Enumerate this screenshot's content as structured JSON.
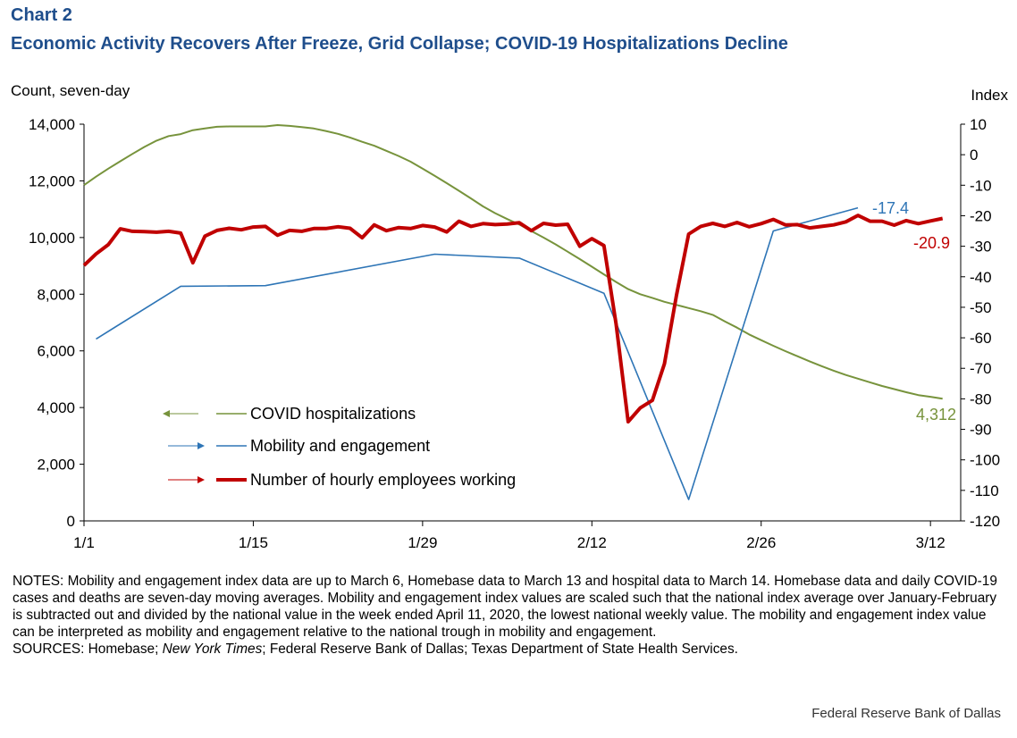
{
  "header": {
    "label": "Chart 2",
    "title": "Economic Activity Recovers After Freeze, Grid Collapse; COVID-19 Hospitalizations Decline"
  },
  "axes": {
    "left_unit": "Count, seven-day",
    "right_unit": "Index"
  },
  "notes": {
    "text": "NOTES: Mobility and engagement index data are up to March 6, Homebase data to March 13 and hospital data to March 14. Homebase data and daily COVID-19 cases and deaths are seven-day moving averages. Mobility and engagement index values are scaled such that the national index average over January-February is subtracted out and divided by the national value in the week ended April 11, 2020, the lowest national weekly value. The mobility and engagement index value can be interpreted as mobility and engagement relative to the national trough in mobility and engagement.",
    "sources_label": "SOURCES: Homebase; ",
    "sources_italic": "New York Times",
    "sources_rest": "; Federal Reserve Bank of Dallas; Texas Department of State Health Services."
  },
  "credit": "Federal Reserve Bank of Dallas",
  "colors": {
    "title": "#1f4e8c",
    "covid": "#77933c",
    "mobility": "#2e75b6",
    "employees": "#c00000",
    "axis": "#000000"
  },
  "chart_data": {
    "type": "line",
    "x_ticks": [
      {
        "day": 0,
        "label": "1/1"
      },
      {
        "day": 14,
        "label": "1/15"
      },
      {
        "day": 28,
        "label": "1/29"
      },
      {
        "day": 42,
        "label": "2/12"
      },
      {
        "day": 56,
        "label": "2/26"
      },
      {
        "day": 70,
        "label": "3/12"
      }
    ],
    "xlim": [
      0,
      72.5
    ],
    "left_axis": {
      "label": "Count, seven-day",
      "ylim": [
        0,
        14000
      ],
      "ticks": [
        "0",
        "2,000",
        "4,000",
        "6,000",
        "8,000",
        "10,000",
        "12,000",
        "14,000"
      ],
      "tick_values": [
        0,
        2000,
        4000,
        6000,
        8000,
        10000,
        12000,
        14000
      ]
    },
    "right_axis": {
      "label": "Index",
      "ylim": [
        -120,
        10
      ],
      "ticks": [
        "-120",
        "-110",
        "-100",
        "-90",
        "-80",
        "-70",
        "-60",
        "-50",
        "-40",
        "-30",
        "-20",
        "-10",
        "0",
        "10"
      ],
      "tick_values": [
        -120,
        -110,
        -100,
        -90,
        -80,
        -70,
        -60,
        -50,
        -40,
        -30,
        -20,
        -10,
        0,
        10
      ]
    },
    "legend_placement": "lower-left",
    "series": [
      {
        "name": "COVID hospitalizations",
        "axis": "left",
        "color": "#77933c",
        "end_label": "4,312",
        "points": [
          [
            0,
            11850
          ],
          [
            1,
            12150
          ],
          [
            2,
            12430
          ],
          [
            3,
            12690
          ],
          [
            4,
            12950
          ],
          [
            5,
            13200
          ],
          [
            6,
            13420
          ],
          [
            7,
            13580
          ],
          [
            8,
            13650
          ],
          [
            9,
            13790
          ],
          [
            10,
            13850
          ],
          [
            11,
            13910
          ],
          [
            12,
            13920
          ],
          [
            13,
            13920
          ],
          [
            14,
            13920
          ],
          [
            15,
            13920
          ],
          [
            16,
            13970
          ],
          [
            17,
            13940
          ],
          [
            18,
            13900
          ],
          [
            19,
            13850
          ],
          [
            20,
            13760
          ],
          [
            21,
            13660
          ],
          [
            22,
            13530
          ],
          [
            23,
            13380
          ],
          [
            24,
            13240
          ],
          [
            25,
            13060
          ],
          [
            26,
            12880
          ],
          [
            27,
            12680
          ],
          [
            28,
            12430
          ],
          [
            29,
            12180
          ],
          [
            30,
            11920
          ],
          [
            31,
            11650
          ],
          [
            32,
            11380
          ],
          [
            33,
            11100
          ],
          [
            34,
            10860
          ],
          [
            35,
            10650
          ],
          [
            36,
            10460
          ],
          [
            37,
            10230
          ],
          [
            38,
            10000
          ],
          [
            39,
            9760
          ],
          [
            40,
            9500
          ],
          [
            41,
            9240
          ],
          [
            42,
            8970
          ],
          [
            43,
            8700
          ],
          [
            44,
            8430
          ],
          [
            45,
            8180
          ],
          [
            46,
            8000
          ],
          [
            47,
            7870
          ],
          [
            48,
            7730
          ],
          [
            49,
            7620
          ],
          [
            50,
            7510
          ],
          [
            51,
            7400
          ],
          [
            52,
            7270
          ],
          [
            53,
            7040
          ],
          [
            54,
            6820
          ],
          [
            55,
            6580
          ],
          [
            56,
            6380
          ],
          [
            57,
            6180
          ],
          [
            58,
            5990
          ],
          [
            59,
            5810
          ],
          [
            60,
            5630
          ],
          [
            61,
            5460
          ],
          [
            62,
            5300
          ],
          [
            63,
            5150
          ],
          [
            64,
            5020
          ],
          [
            65,
            4890
          ],
          [
            66,
            4760
          ],
          [
            67,
            4650
          ],
          [
            68,
            4540
          ],
          [
            69,
            4440
          ],
          [
            70,
            4380
          ],
          [
            71,
            4312
          ]
        ]
      },
      {
        "name": "Mobility and engagement",
        "axis": "right",
        "color": "#2e75b6",
        "end_label": "-17.4",
        "points": [
          [
            1,
            -60.4
          ],
          [
            8,
            -43.1
          ],
          [
            15,
            -42.9
          ],
          [
            29,
            -32.6
          ],
          [
            36,
            -33.9
          ],
          [
            43,
            -45.4
          ],
          [
            50,
            -113
          ],
          [
            57,
            -25
          ],
          [
            64,
            -17.4
          ]
        ]
      },
      {
        "name": "Number of hourly employees working",
        "axis": "right",
        "color": "#c00000",
        "end_label": "-20.9",
        "points": [
          [
            0,
            -36.3
          ],
          [
            1,
            -32.5
          ],
          [
            2,
            -29.5
          ],
          [
            3,
            -24.3
          ],
          [
            4,
            -25.1
          ],
          [
            5,
            -25.2
          ],
          [
            6,
            -25.4
          ],
          [
            7,
            -25.1
          ],
          [
            8,
            -25.7
          ],
          [
            9,
            -35.4
          ],
          [
            10,
            -26.7
          ],
          [
            11,
            -24.8
          ],
          [
            12,
            -24.1
          ],
          [
            13,
            -24.6
          ],
          [
            14,
            -23.7
          ],
          [
            15,
            -23.5
          ],
          [
            16,
            -26.4
          ],
          [
            17,
            -24.8
          ],
          [
            18,
            -25.1
          ],
          [
            19,
            -24.2
          ],
          [
            20,
            -24.2
          ],
          [
            21,
            -23.6
          ],
          [
            22,
            -24.1
          ],
          [
            23,
            -27.2
          ],
          [
            24,
            -23.0
          ],
          [
            25,
            -24.9
          ],
          [
            26,
            -23.9
          ],
          [
            27,
            -24.2
          ],
          [
            28,
            -23.2
          ],
          [
            29,
            -23.7
          ],
          [
            30,
            -25.3
          ],
          [
            31,
            -21.8
          ],
          [
            32,
            -23.5
          ],
          [
            33,
            -22.6
          ],
          [
            34,
            -22.9
          ],
          [
            35,
            -22.7
          ],
          [
            36,
            -22.3
          ],
          [
            37,
            -24.9
          ],
          [
            38,
            -22.5
          ],
          [
            39,
            -23.1
          ],
          [
            40,
            -22.8
          ],
          [
            41,
            -30.0
          ],
          [
            42,
            -27.5
          ],
          [
            43,
            -29.8
          ],
          [
            44,
            -55.5
          ],
          [
            45,
            -87.5
          ],
          [
            46,
            -83.0
          ],
          [
            47,
            -80.5
          ],
          [
            48,
            -68.5
          ],
          [
            49,
            -46.0
          ],
          [
            50,
            -26.0
          ],
          [
            51,
            -23.5
          ],
          [
            52,
            -22.5
          ],
          [
            53,
            -23.5
          ],
          [
            54,
            -22.2
          ],
          [
            55,
            -23.6
          ],
          [
            56,
            -22.6
          ],
          [
            57,
            -21.2
          ],
          [
            58,
            -23.0
          ],
          [
            59,
            -22.9
          ],
          [
            60,
            -24.0
          ],
          [
            61,
            -23.5
          ],
          [
            62,
            -23.0
          ],
          [
            63,
            -22.0
          ],
          [
            64,
            -19.9
          ],
          [
            65,
            -21.8
          ],
          [
            66,
            -21.8
          ],
          [
            67,
            -23.1
          ],
          [
            68,
            -21.6
          ],
          [
            69,
            -22.6
          ],
          [
            70,
            -21.7
          ],
          [
            71,
            -20.9
          ]
        ]
      }
    ]
  }
}
